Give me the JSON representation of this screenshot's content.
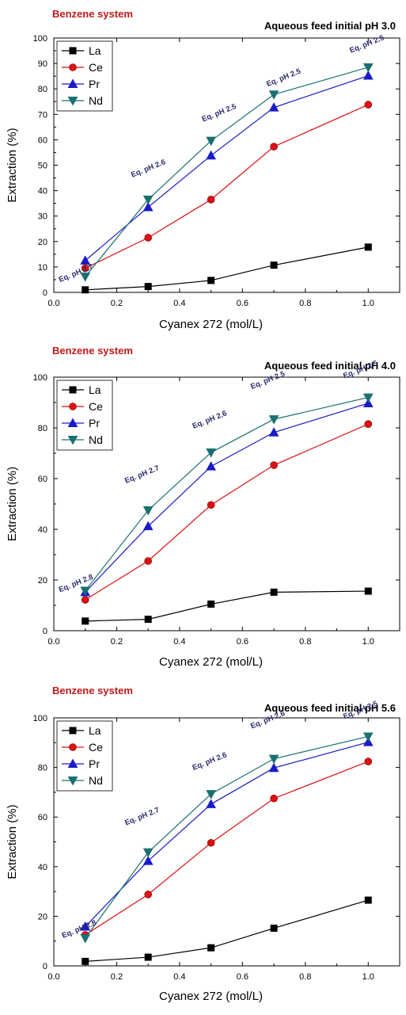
{
  "chart_data": [
    {
      "type": "line",
      "system_label": "Benzene system",
      "title": "Aqueous feed initial pH 3.0",
      "xlabel": "Cyanex 272 (mol/L)",
      "ylabel": "Extraction (%)",
      "xlim": [
        0.0,
        1.1
      ],
      "ylim": [
        0,
        100
      ],
      "xticks": [
        "0.0",
        "0.2",
        "0.4",
        "0.6",
        "0.8",
        "1.0"
      ],
      "yticks": [
        "0",
        "10",
        "20",
        "30",
        "40",
        "50",
        "60",
        "70",
        "80",
        "90",
        "100"
      ],
      "grid": false,
      "legend_position": "top-left",
      "x": [
        0.1,
        0.3,
        0.5,
        0.7,
        1.0
      ],
      "series": [
        {
          "name": "La",
          "color": "#000000",
          "marker": "square",
          "values": [
            1,
            2.3,
            4.7,
            10.7,
            17.8
          ]
        },
        {
          "name": "Ce",
          "color": "#dd1111",
          "marker": "circle",
          "values": [
            9.5,
            21.5,
            36.5,
            57.3,
            73.8
          ]
        },
        {
          "name": "Pr",
          "color": "#1a1ac8",
          "marker": "triangle-up",
          "values": [
            12.5,
            33.5,
            53.8,
            72.7,
            85.2
          ]
        },
        {
          "name": "Nd",
          "color": "#1a7070",
          "marker": "triangle-down",
          "values": [
            6.2,
            36.5,
            59.6,
            77.8,
            88.5
          ]
        }
      ],
      "annotations": [
        "Eq. pH 2.7",
        "Eq. pH 2.6",
        "Eq. pH 2.5",
        "Eq. pH 2.5",
        "Eq. pH 2.5"
      ]
    },
    {
      "type": "line",
      "system_label": "Benzene system",
      "title": "Aqueous feed initial pH 4.0",
      "xlabel": "Cyanex 272 (mol/L)",
      "ylabel": "Extraction (%)",
      "xlim": [
        0.0,
        1.1
      ],
      "ylim": [
        0,
        100
      ],
      "xticks": [
        "0.0",
        "0.2",
        "0.4",
        "0.6",
        "0.8",
        "1.0"
      ],
      "yticks": [
        "0",
        "20",
        "40",
        "60",
        "80",
        "100"
      ],
      "grid": false,
      "legend_position": "top-left",
      "x": [
        0.1,
        0.3,
        0.5,
        0.7,
        1.0
      ],
      "series": [
        {
          "name": "La",
          "color": "#000000",
          "marker": "square",
          "values": [
            3.8,
            4.5,
            10.5,
            15.2,
            15.6
          ]
        },
        {
          "name": "Ce",
          "color": "#dd1111",
          "marker": "circle",
          "values": [
            12.2,
            27.5,
            49.6,
            65.3,
            81.5
          ]
        },
        {
          "name": "Pr",
          "color": "#1a1ac8",
          "marker": "triangle-up",
          "values": [
            15.2,
            41.2,
            64.8,
            78.2,
            89.7
          ]
        },
        {
          "name": "Nd",
          "color": "#1a7070",
          "marker": "triangle-down",
          "values": [
            15.8,
            47.5,
            70.3,
            83.4,
            92
          ]
        }
      ],
      "annotations": [
        "Eq. pH 2.8",
        "Eq. pH 2.7",
        "Eq. pH 2.6",
        "Eq. pH 2.5",
        "Eq. pH 2.5"
      ]
    },
    {
      "type": "line",
      "system_label": "Benzene system",
      "title": "Aqueous feed initial pH 5.6",
      "xlabel": "Cyanex 272 (mol/L)",
      "ylabel": "Extraction (%)",
      "xlim": [
        0.0,
        1.1
      ],
      "ylim": [
        0,
        100
      ],
      "xticks": [
        "0.0",
        "0.2",
        "0.4",
        "0.6",
        "0.8",
        "1.0"
      ],
      "yticks": [
        "0",
        "20",
        "40",
        "60",
        "80",
        "100"
      ],
      "grid": false,
      "legend_position": "top-left",
      "x": [
        0.1,
        0.3,
        0.5,
        0.7,
        1.0
      ],
      "series": [
        {
          "name": "La",
          "color": "#000000",
          "marker": "square",
          "values": [
            1.8,
            3.5,
            7.3,
            15.2,
            26.5
          ]
        },
        {
          "name": "Ce",
          "color": "#dd1111",
          "marker": "circle",
          "values": [
            12.5,
            28.8,
            49.6,
            67.5,
            82.4
          ]
        },
        {
          "name": "Pr",
          "color": "#1a1ac8",
          "marker": "triangle-up",
          "values": [
            15.8,
            42.3,
            65.2,
            79.8,
            90.2
          ]
        },
        {
          "name": "Nd",
          "color": "#1a7070",
          "marker": "triangle-down",
          "values": [
            11.2,
            45.8,
            69.3,
            83.5,
            92.5
          ]
        }
      ],
      "annotations": [
        "Eq. pH 2.8",
        "Eq. pH 2.7",
        "Eq. pH 2.6",
        "Eq. pH 2.6",
        "Eq. pH 2.5"
      ]
    }
  ]
}
